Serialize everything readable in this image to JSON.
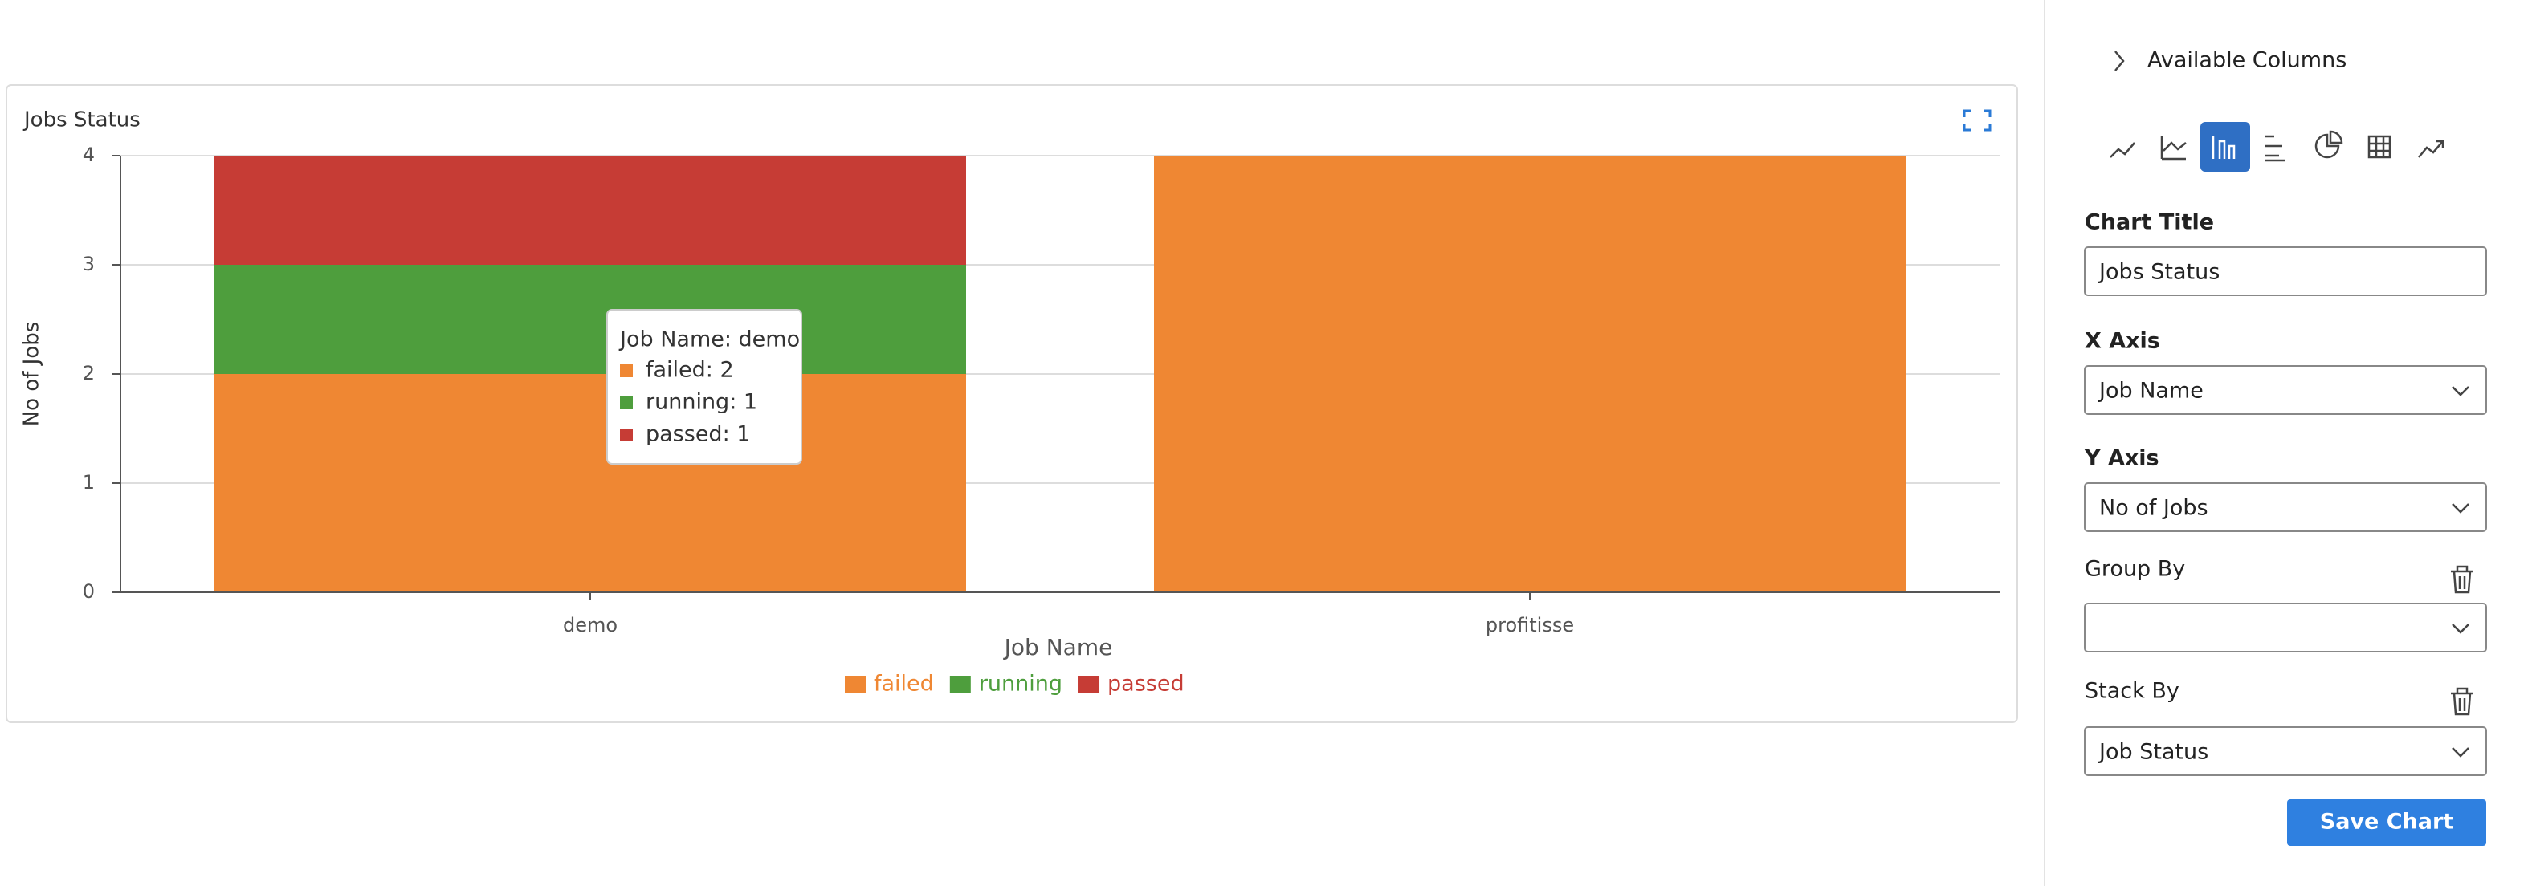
{
  "chart_data": {
    "type": "bar",
    "stacked": true,
    "title": "Jobs Status",
    "x_label": "Job Name",
    "y_label": "No of Jobs",
    "categories": [
      "demo",
      "profitisse"
    ],
    "series": [
      {
        "name": "failed",
        "color": "#ef8733",
        "values": [
          2,
          4
        ]
      },
      {
        "name": "running",
        "color": "#4e9e3d",
        "values": [
          1,
          0
        ]
      },
      {
        "name": "passed",
        "color": "#c63c35",
        "values": [
          1,
          0
        ]
      }
    ],
    "ylim": [
      0,
      4
    ],
    "yticks": [
      0,
      1,
      2,
      3,
      4
    ],
    "grid": true,
    "legend": "bottom",
    "tooltip": {
      "title": "Job Name: demo",
      "items": [
        "failed: 2",
        "running: 1",
        "passed: 1"
      ]
    }
  },
  "panel": {
    "available_columns": "Available Columns",
    "fields": [
      {
        "label": "Chart Title",
        "value": "Jobs Status"
      },
      {
        "label": "X Axis",
        "value": "Job Name"
      },
      {
        "label": "Y Axis",
        "value": "No of Jobs"
      },
      {
        "label": "Group By"
      },
      {
        "label": "Stack By",
        "value": "Job Status"
      }
    ],
    "save": "Save Chart"
  }
}
